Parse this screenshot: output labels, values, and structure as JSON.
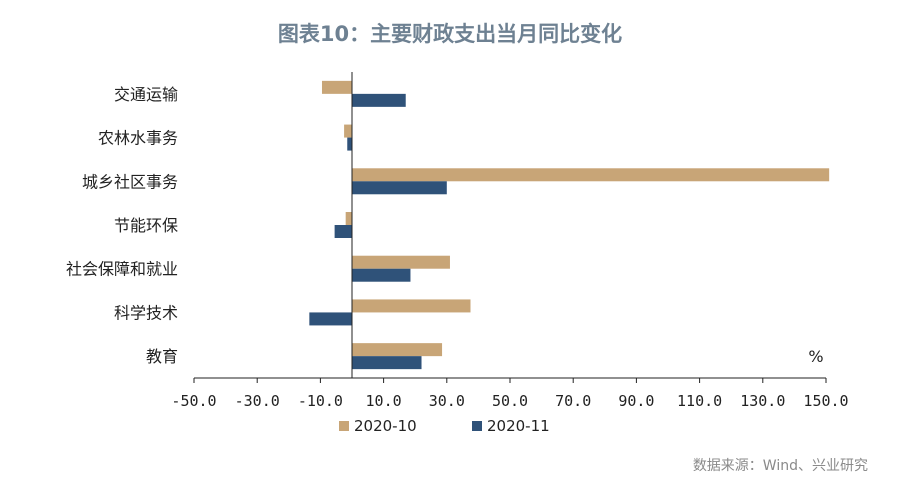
{
  "title": "图表10：主要财政支出当月同比变化",
  "source": "数据来源：Wind、兴业研究",
  "chart_data": {
    "type": "bar",
    "orientation": "horizontal",
    "title": "图表10：主要财政支出当月同比变化",
    "unit_label": "%",
    "categories": [
      "交通运输",
      "农林水事务",
      "城乡社区事务",
      "节能环保",
      "社会保障和就业",
      "科学技术",
      "教育"
    ],
    "series": [
      {
        "name": "2020-10",
        "color": "#c8a577",
        "values": [
          -9.5,
          -2.5,
          151.0,
          -2.0,
          31.0,
          37.5,
          28.5
        ]
      },
      {
        "name": "2020-11",
        "color": "#2f5279",
        "values": [
          17.0,
          -1.5,
          30.0,
          -5.5,
          18.5,
          -13.5,
          22.0
        ]
      }
    ],
    "xlim": [
      -50,
      150
    ],
    "xticks": [
      -50,
      -30,
      -10,
      10,
      30,
      50,
      70,
      90,
      110,
      130,
      150
    ],
    "xtick_labels": [
      "-50.0",
      "-30.0",
      "-10.0",
      "10.0",
      "30.0",
      "50.0",
      "70.0",
      "90.0",
      "110.0",
      "130.0",
      "150.0"
    ],
    "legend_position": "bottom"
  }
}
